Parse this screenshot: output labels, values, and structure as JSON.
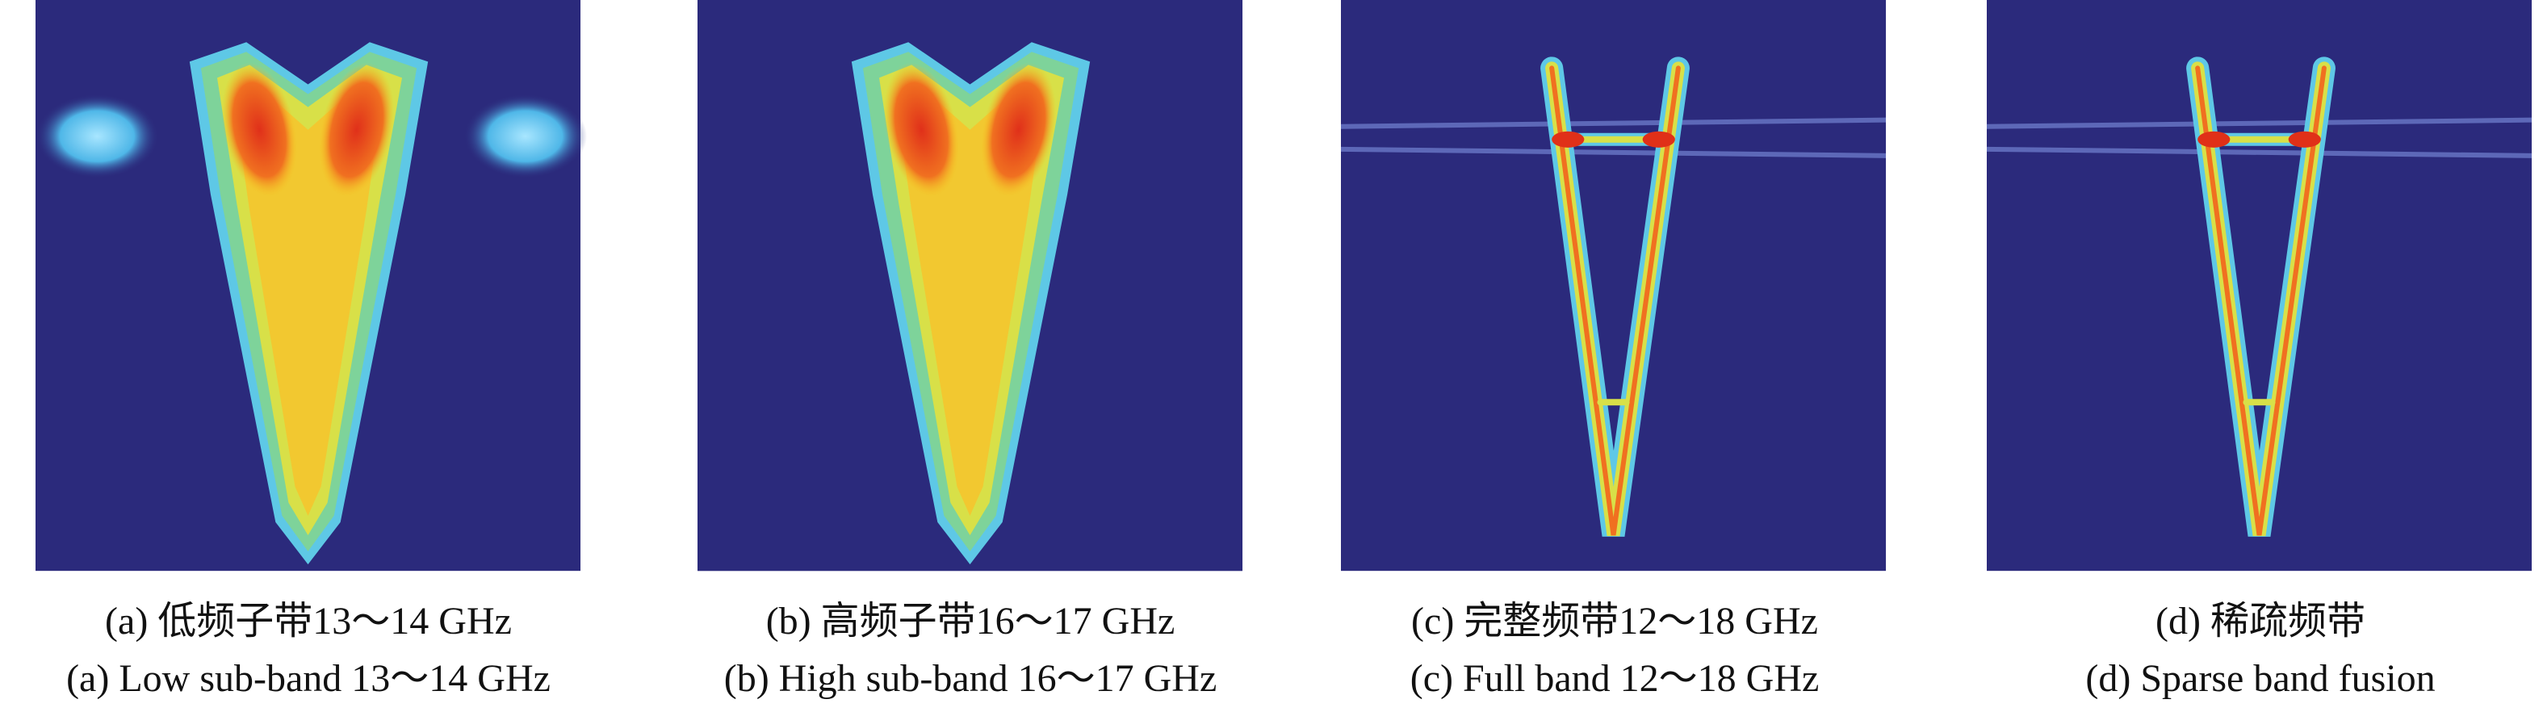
{
  "panels": [
    {
      "caption_cn": "(a) 低频子带13～14 GHz",
      "caption_en": "(a) Low sub-band 13～14 GHz"
    },
    {
      "caption_cn": "(b) 高频子带16～17 GHz",
      "caption_en": "(b) High sub-band 16～17 GHz"
    },
    {
      "caption_cn": "(c) 完整频带12～18 GHz",
      "caption_en": "(c) Full band 12～18 GHz"
    },
    {
      "caption_cn": "(d) 稀疏频带",
      "caption_en": "(d) Sparse band fusion"
    }
  ]
}
